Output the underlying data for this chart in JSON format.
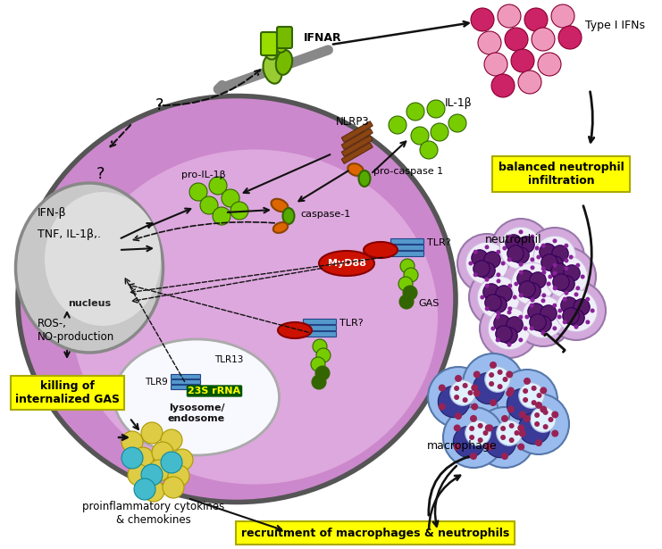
{
  "bg_color": "#ffffff",
  "cell_color": "#cc88cc",
  "cell_edge": "#555555",
  "nucleus_color": "#aaaaaa",
  "lyso_color": "#e8e8ff",
  "green_bright": "#77cc00",
  "green_dark": "#336600",
  "green_mid": "#55aa00",
  "orange_color": "#dd6600",
  "red_color": "#cc1100",
  "blue_tlr": "#5599cc",
  "pink_light": "#ee99bb",
  "pink_dark": "#cc2266",
  "yellow_bg": "#ffff00",
  "neutro_outer": "#d4aadd",
  "neutro_nucleus": "#5a1a6a",
  "neutro_white": "#f0f0ff",
  "macro_outer": "#99bbee",
  "macro_nucleus": "#3a3a99",
  "macro_white": "#e8f4ff",
  "macro_dots": "#992255",
  "brown_nlrp3": "#8B4513",
  "labels": {
    "IFNAR": "IFNAR",
    "type_IFNs": "Type I IFNs",
    "balanced": "balanced neutrophil\ninfiltration",
    "NLRP3": "NLRP3",
    "pro_caspase": "pro-caspase 1",
    "caspase": "caspase-1",
    "pro_IL1b": "pro-IL-1β",
    "IL1b": "IL-1β",
    "MyD88": "MyD88",
    "TLR_q": "TLR?",
    "GAS": "GAS",
    "TLR9": "TLR9",
    "TLR13": "TLR13",
    "rRNA": "23S rRNA",
    "lysosome": "lysosome/\nendosome",
    "nucleus": "nucleus",
    "IFNb": "IFN-β",
    "TNF": "TNF, IL-1β,.",
    "ROS": "ROS-,\nNO-production",
    "killing": "killing of\ninternalized GAS",
    "proinflam": "proinflammatory cytokines\n& chemokines",
    "recruitment": "recruitment of macrophages & neutrophils",
    "neutrophil": "neutrophil",
    "macrophage": "macrophage"
  }
}
